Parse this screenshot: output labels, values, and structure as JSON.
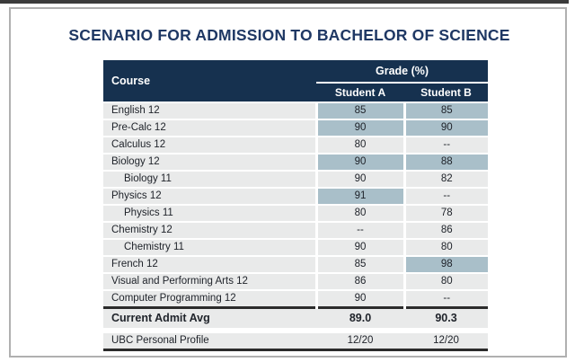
{
  "title": "SCENARIO FOR ADMISSION TO BACHELOR OF SCIENCE",
  "table": {
    "header": {
      "course": "Course",
      "grade_group": "Grade (%)",
      "student_a": "Student A",
      "student_b": "Student B"
    },
    "rows": [
      {
        "course": "English 12",
        "a": "85",
        "b": "85",
        "a_hl": true,
        "b_hl": true,
        "indent": false
      },
      {
        "course": "Pre-Calc 12",
        "a": "90",
        "b": "90",
        "a_hl": true,
        "b_hl": true,
        "indent": false
      },
      {
        "course": "Calculus 12",
        "a": "80",
        "b": "--",
        "a_hl": false,
        "b_hl": false,
        "indent": false
      },
      {
        "course": "Biology 12",
        "a": "90",
        "b": "88",
        "a_hl": true,
        "b_hl": true,
        "indent": false
      },
      {
        "course": "Biology 11",
        "a": "90",
        "b": "82",
        "a_hl": false,
        "b_hl": false,
        "indent": true
      },
      {
        "course": "Physics 12",
        "a": "91",
        "b": "--",
        "a_hl": true,
        "b_hl": false,
        "indent": false
      },
      {
        "course": "Physics 11",
        "a": "80",
        "b": "78",
        "a_hl": false,
        "b_hl": false,
        "indent": true
      },
      {
        "course": "Chemistry 12",
        "a": "--",
        "b": "86",
        "a_hl": false,
        "b_hl": false,
        "indent": false
      },
      {
        "course": "Chemistry 11",
        "a": "90",
        "b": "80",
        "a_hl": false,
        "b_hl": false,
        "indent": true
      },
      {
        "course": "French 12",
        "a": "85",
        "b": "98",
        "a_hl": false,
        "b_hl": true,
        "indent": false
      },
      {
        "course": "Visual and Performing Arts 12",
        "a": "86",
        "b": "80",
        "a_hl": false,
        "b_hl": false,
        "indent": false
      },
      {
        "course": "Computer Programming 12",
        "a": "90",
        "b": "--",
        "a_hl": false,
        "b_hl": false,
        "indent": false
      }
    ],
    "summary": [
      {
        "label": "Current Admit Avg",
        "a": "89.0",
        "b": "90.3"
      },
      {
        "label": "UBC Personal Profile",
        "a": "12/20",
        "b": "12/20"
      }
    ]
  },
  "colors": {
    "header_bg": "#16314f",
    "title_text": "#1f3864",
    "row_bg": "#e9eaea",
    "highlight": "#a9bfc9",
    "rule_dark": "#2b2b2b",
    "frame_border": "#b0b0b0",
    "top_bar": "#3b3b3b"
  }
}
